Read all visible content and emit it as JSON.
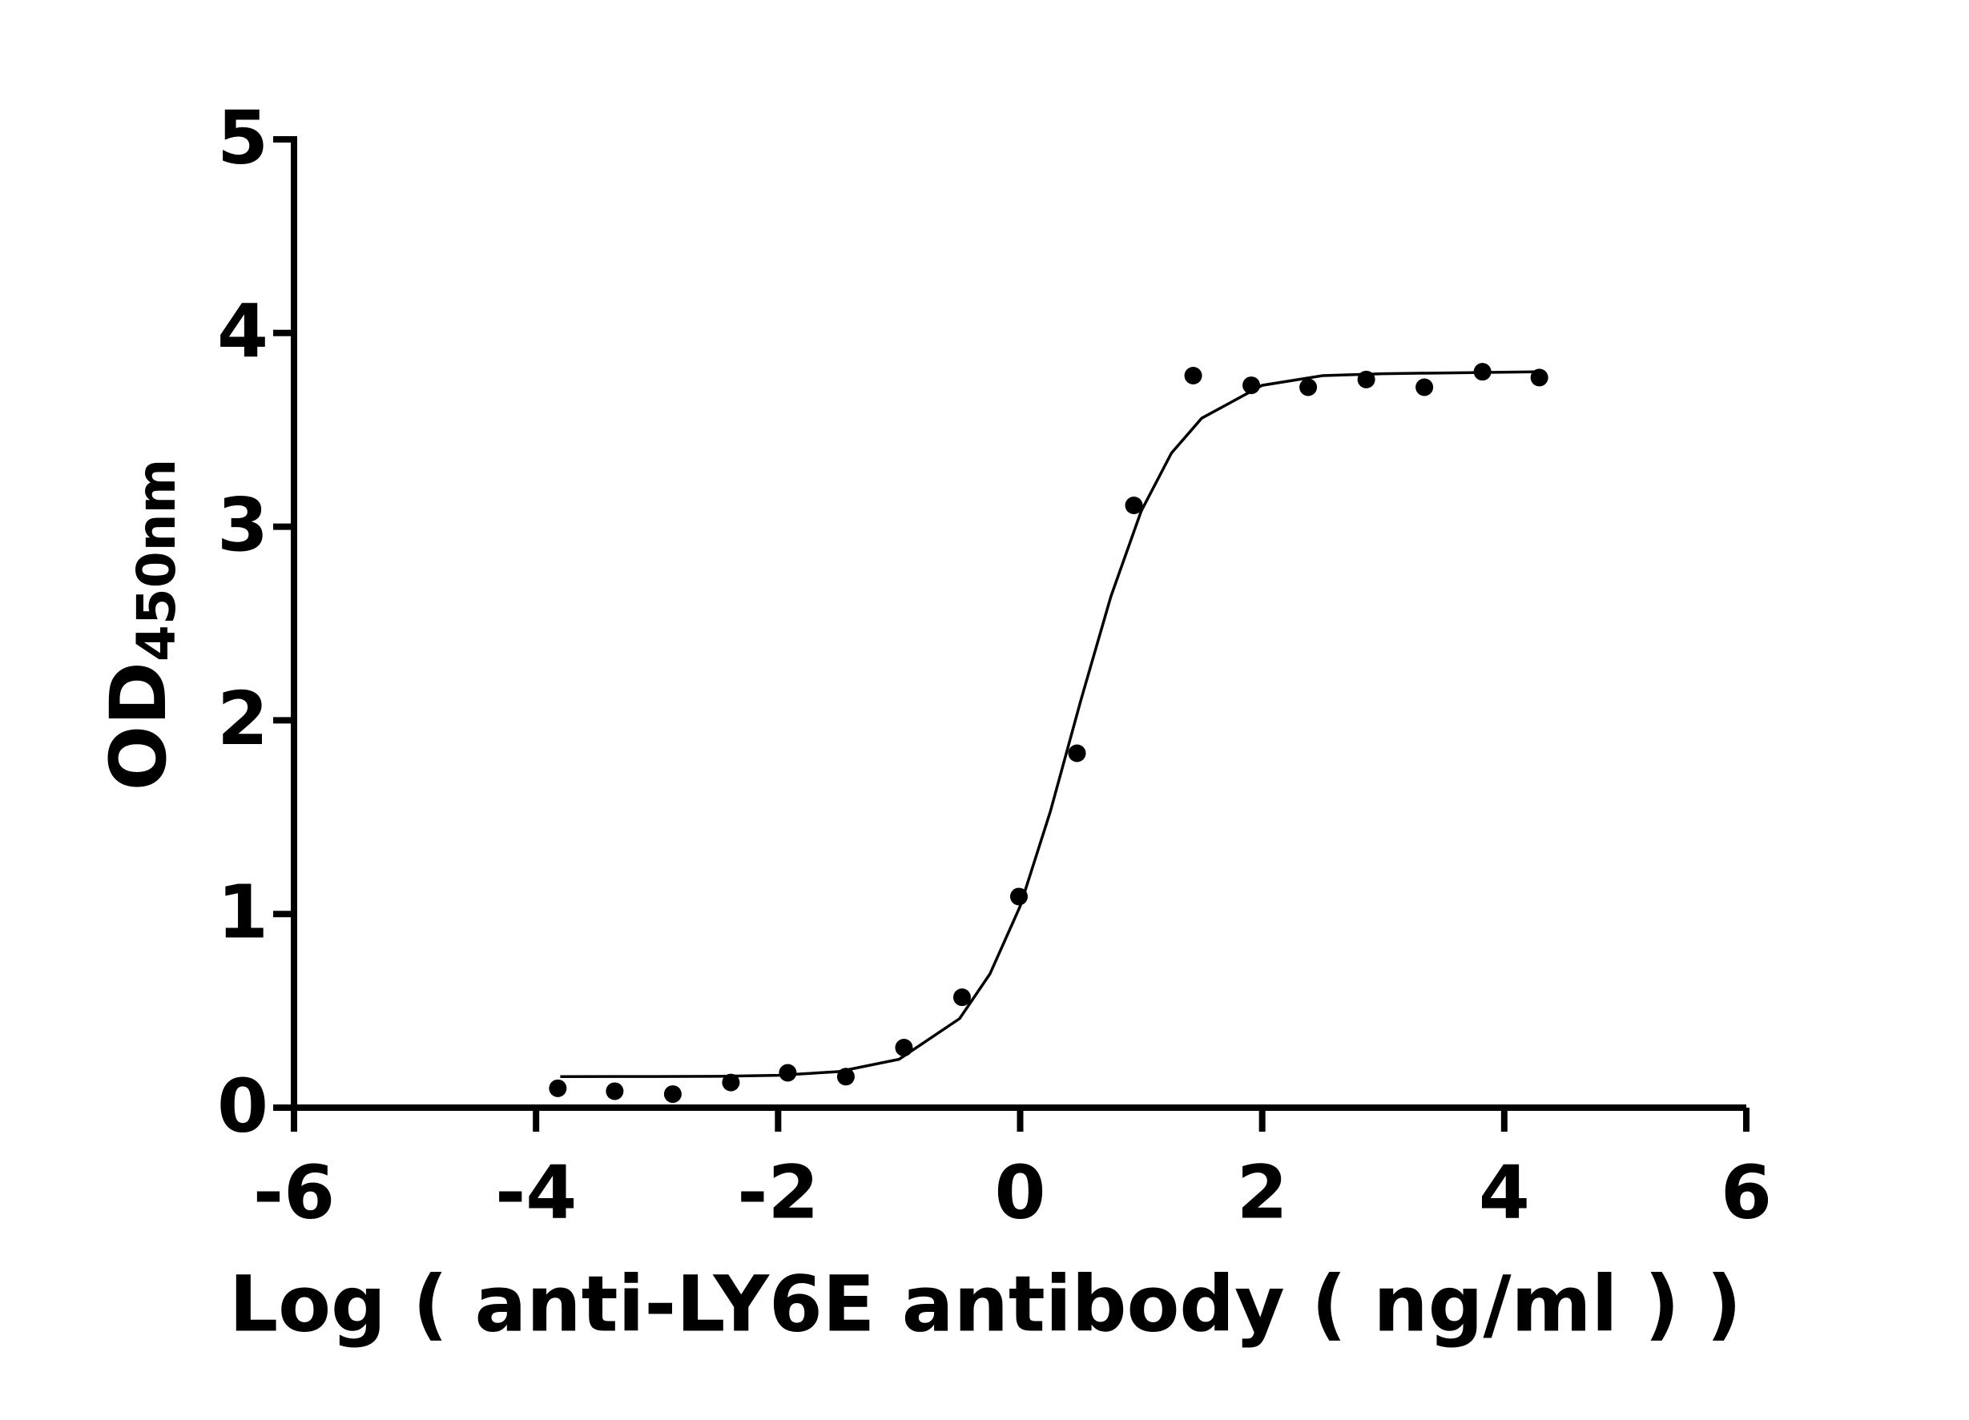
{
  "chart_data": {
    "type": "scatter",
    "xlabel": "Log ( anti-LY6E antibody ( ng/ml )    )",
    "ylabel": "OD",
    "ylabel_sub": "450nm",
    "xlim": [
      -6,
      6
    ],
    "xticks": [
      -6,
      -4,
      -2,
      0,
      2,
      4,
      6
    ],
    "ylim": [
      0,
      5
    ],
    "yticks": [
      0,
      1,
      2,
      3,
      4,
      5
    ],
    "grid": false,
    "series": [
      {
        "kind": "points",
        "color": "#000000",
        "x": [
          -3.82,
          -3.35,
          -2.87,
          -2.39,
          -1.92,
          -1.44,
          -0.96,
          -0.48,
          -0.01,
          0.47,
          0.94,
          1.43,
          1.91,
          2.38,
          2.86,
          3.34,
          3.82,
          4.29
        ],
        "values": [
          0.1,
          0.085,
          0.07,
          0.13,
          0.18,
          0.16,
          0.31,
          0.57,
          1.09,
          1.83,
          3.11,
          3.78,
          3.73,
          3.72,
          3.76,
          3.72,
          3.8,
          3.77
        ]
      },
      {
        "kind": "line",
        "color": "#000000",
        "x": [
          -3.8,
          -3,
          -2.5,
          -2,
          -1.5,
          -1,
          -0.5,
          -0.25,
          0,
          0.25,
          0.5,
          0.75,
          1,
          1.25,
          1.5,
          2,
          2.5,
          3,
          4.3
        ],
        "values": [
          0.16,
          0.161,
          0.162,
          0.167,
          0.186,
          0.25,
          0.46,
          0.69,
          1.04,
          1.53,
          2.1,
          2.64,
          3.08,
          3.38,
          3.56,
          3.73,
          3.78,
          3.79,
          3.8
        ]
      }
    ]
  }
}
